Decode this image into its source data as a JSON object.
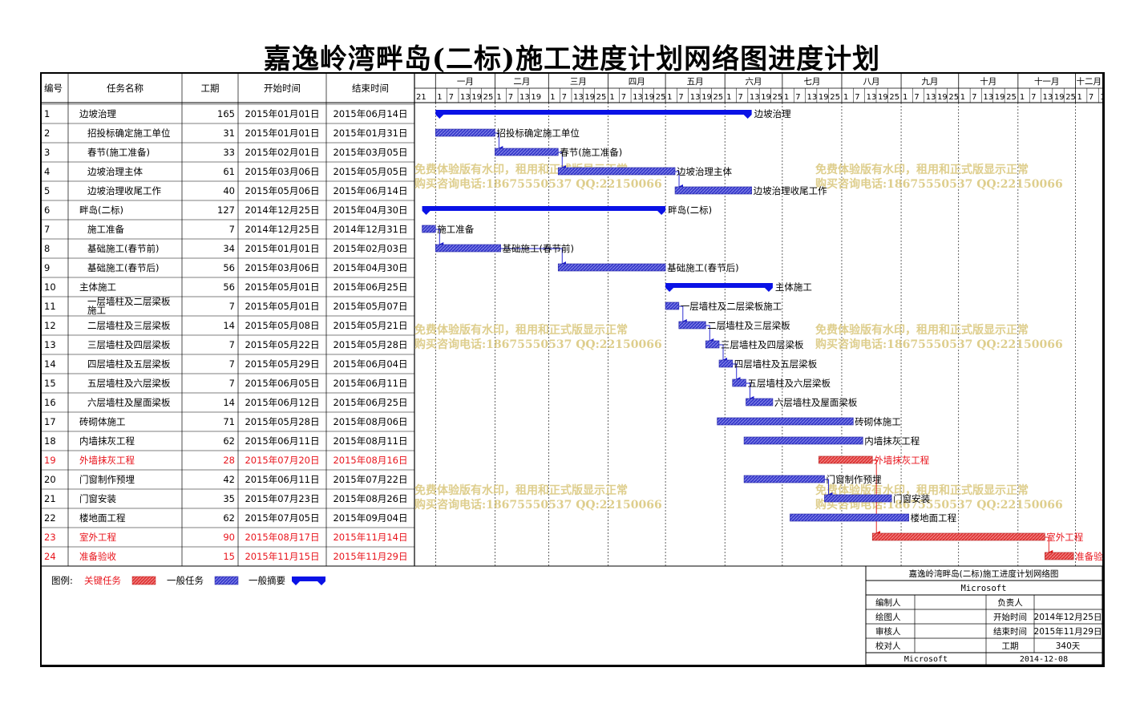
{
  "title": "嘉逸岭湾畔岛(二标)施工进度计划网络图进度计划",
  "headers": {
    "id": "编号",
    "name": "任务名称",
    "duration": "工期",
    "start": "开始时间",
    "end": "结束时间"
  },
  "timeline": {
    "first_day_label": "21",
    "months": [
      {
        "label": "一月",
        "year": 2015,
        "month": 1,
        "days": [
          1,
          7,
          13,
          19,
          25
        ]
      },
      {
        "label": "二月",
        "year": 2015,
        "month": 2,
        "days": [
          1,
          7,
          13,
          19
        ]
      },
      {
        "label": "三月",
        "year": 2015,
        "month": 3,
        "days": [
          1,
          7,
          13,
          19,
          25
        ]
      },
      {
        "label": "四月",
        "year": 2015,
        "month": 4,
        "days": [
          1,
          7,
          13,
          19,
          25
        ]
      },
      {
        "label": "五月",
        "year": 2015,
        "month": 5,
        "days": [
          1,
          7,
          13,
          19,
          25
        ]
      },
      {
        "label": "六月",
        "year": 2015,
        "month": 6,
        "days": [
          1,
          7,
          13,
          19,
          25
        ]
      },
      {
        "label": "七月",
        "year": 2015,
        "month": 7,
        "days": [
          1,
          7,
          13,
          19,
          25
        ]
      },
      {
        "label": "八月",
        "year": 2015,
        "month": 8,
        "days": [
          1,
          7,
          13,
          19,
          25
        ]
      },
      {
        "label": "九月",
        "year": 2015,
        "month": 9,
        "days": [
          1,
          7,
          13,
          19,
          25
        ]
      },
      {
        "label": "十月",
        "year": 2015,
        "month": 10,
        "days": [
          1,
          7,
          13,
          19,
          25
        ]
      },
      {
        "label": "十一月",
        "year": 2015,
        "month": 11,
        "days": [
          1,
          7,
          13,
          19,
          25
        ]
      },
      {
        "label": "十二月",
        "year": 2015,
        "month": 12,
        "days": [
          1,
          7,
          13
        ]
      }
    ]
  },
  "chart_data": {
    "type": "gantt",
    "title": "嘉逸岭湾畔岛(二标)施工进度计划网络图进度计划",
    "x_range": [
      "2014-12-21",
      "2015-12-15"
    ],
    "tasks": [
      {
        "id": "1",
        "name": "边坡治理",
        "indent": 0,
        "duration": 165,
        "start": "2015年01月01日",
        "end": "2015年06月14日",
        "s": "2015-01-01",
        "e": "2015-06-14",
        "type": "summary",
        "critical": false
      },
      {
        "id": "2",
        "name": "招投标确定施工单位",
        "indent": 1,
        "duration": 31,
        "start": "2015年01月01日",
        "end": "2015年01月31日",
        "s": "2015-01-01",
        "e": "2015-01-31",
        "type": "task",
        "critical": false
      },
      {
        "id": "3",
        "name": "春节(施工准备)",
        "indent": 1,
        "duration": 33,
        "start": "2015年02月01日",
        "end": "2015年03月05日",
        "s": "2015-02-01",
        "e": "2015-03-05",
        "type": "task",
        "critical": false
      },
      {
        "id": "4",
        "name": "边坡治理主体",
        "indent": 1,
        "duration": 61,
        "start": "2015年03月06日",
        "end": "2015年05月05日",
        "s": "2015-03-06",
        "e": "2015-05-05",
        "type": "task",
        "critical": false
      },
      {
        "id": "5",
        "name": "边坡治理收尾工作",
        "indent": 1,
        "duration": 40,
        "start": "2015年05月06日",
        "end": "2015年06月14日",
        "s": "2015-05-06",
        "e": "2015-06-14",
        "type": "task",
        "critical": false
      },
      {
        "id": "6",
        "name": "畔岛(二标)",
        "indent": 0,
        "duration": 127,
        "start": "2014年12月25日",
        "end": "2015年04月30日",
        "s": "2014-12-25",
        "e": "2015-04-30",
        "type": "summary",
        "critical": false
      },
      {
        "id": "7",
        "name": "施工准备",
        "indent": 1,
        "duration": 7,
        "start": "2014年12月25日",
        "end": "2014年12月31日",
        "s": "2014-12-25",
        "e": "2014-12-31",
        "type": "task",
        "critical": false
      },
      {
        "id": "8",
        "name": "基础施工(春节前)",
        "indent": 1,
        "duration": 34,
        "start": "2015年01月01日",
        "end": "2015年02月03日",
        "s": "2015-01-01",
        "e": "2015-02-03",
        "type": "task",
        "critical": false
      },
      {
        "id": "9",
        "name": "基础施工(春节后)",
        "indent": 1,
        "duration": 56,
        "start": "2015年03月06日",
        "end": "2015年04月30日",
        "s": "2015-03-06",
        "e": "2015-04-30",
        "type": "task",
        "critical": false
      },
      {
        "id": "10",
        "name": "主体施工",
        "indent": 0,
        "duration": 56,
        "start": "2015年05月01日",
        "end": "2015年06月25日",
        "s": "2015-05-01",
        "e": "2015-06-25",
        "type": "summary",
        "critical": false
      },
      {
        "id": "11",
        "name": "一层墙柱及二层梁板施工",
        "name_lines": [
          "一层墙柱及二层梁板",
          "施工"
        ],
        "indent": 1,
        "duration": 7,
        "start": "2015年05月01日",
        "end": "2015年05月07日",
        "s": "2015-05-01",
        "e": "2015-05-07",
        "type": "task",
        "critical": false
      },
      {
        "id": "12",
        "name": "二层墙柱及三层梁板",
        "indent": 1,
        "duration": 14,
        "start": "2015年05月08日",
        "end": "2015年05月21日",
        "s": "2015-05-08",
        "e": "2015-05-21",
        "type": "task",
        "critical": false
      },
      {
        "id": "13",
        "name": "三层墙柱及四层梁板",
        "indent": 1,
        "duration": 7,
        "start": "2015年05月22日",
        "end": "2015年05月28日",
        "s": "2015-05-22",
        "e": "2015-05-28",
        "type": "task",
        "critical": false
      },
      {
        "id": "14",
        "name": "四层墙柱及五层梁板",
        "indent": 1,
        "duration": 7,
        "start": "2015年05月29日",
        "end": "2015年06月04日",
        "s": "2015-05-29",
        "e": "2015-06-04",
        "type": "task",
        "critical": false
      },
      {
        "id": "15",
        "name": "五层墙柱及六层梁板",
        "indent": 1,
        "duration": 7,
        "start": "2015年06月05日",
        "end": "2015年06月11日",
        "s": "2015-06-05",
        "e": "2015-06-11",
        "type": "task",
        "critical": false
      },
      {
        "id": "16",
        "name": "六层墙柱及屋面梁板",
        "indent": 1,
        "duration": 14,
        "start": "2015年06月12日",
        "end": "2015年06月25日",
        "s": "2015-06-12",
        "e": "2015-06-25",
        "type": "task",
        "critical": false
      },
      {
        "id": "17",
        "name": "砖砌体施工",
        "indent": 0,
        "duration": 71,
        "start": "2015年05月28日",
        "end": "2015年08月06日",
        "s": "2015-05-28",
        "e": "2015-08-06",
        "type": "task",
        "critical": false
      },
      {
        "id": "18",
        "name": "内墙抹灰工程",
        "indent": 0,
        "duration": 62,
        "start": "2015年06月11日",
        "end": "2015年08月11日",
        "s": "2015-06-11",
        "e": "2015-08-11",
        "type": "task",
        "critical": false
      },
      {
        "id": "19",
        "name": "外墙抹灰工程",
        "indent": 0,
        "duration": 28,
        "start": "2015年07月20日",
        "end": "2015年08月16日",
        "s": "2015-07-20",
        "e": "2015-08-16",
        "type": "task",
        "critical": true
      },
      {
        "id": "20",
        "name": "门窗制作预埋",
        "indent": 0,
        "duration": 42,
        "start": "2015年06月11日",
        "end": "2015年07月22日",
        "s": "2015-06-11",
        "e": "2015-07-22",
        "type": "task",
        "critical": false
      },
      {
        "id": "21",
        "name": "门窗安装",
        "indent": 0,
        "duration": 35,
        "start": "2015年07月23日",
        "end": "2015年08月26日",
        "s": "2015-07-23",
        "e": "2015-08-26",
        "type": "task",
        "critical": false
      },
      {
        "id": "22",
        "name": "楼地面工程",
        "indent": 0,
        "duration": 62,
        "start": "2015年07月05日",
        "end": "2015年09月04日",
        "s": "2015-07-05",
        "e": "2015-09-04",
        "type": "task",
        "critical": false
      },
      {
        "id": "23",
        "name": "室外工程",
        "indent": 0,
        "duration": 90,
        "start": "2015年08月17日",
        "end": "2015年11月14日",
        "s": "2015-08-17",
        "e": "2015-11-14",
        "type": "task",
        "critical": true
      },
      {
        "id": "24",
        "name": "准备验收",
        "indent": 0,
        "duration": 15,
        "start": "2015年11月15日",
        "end": "2015年11月29日",
        "s": "2015-11-15",
        "e": "2015-11-29",
        "type": "task",
        "critical": true
      }
    ],
    "links": [
      [
        "2",
        "3"
      ],
      [
        "3",
        "4"
      ],
      [
        "4",
        "5"
      ],
      [
        "7",
        "8"
      ],
      [
        "8",
        "9"
      ],
      [
        "11",
        "12"
      ],
      [
        "12",
        "13"
      ],
      [
        "13",
        "14"
      ],
      [
        "14",
        "15"
      ],
      [
        "15",
        "16"
      ],
      [
        "20",
        "21"
      ],
      [
        "19",
        "23"
      ],
      [
        "23",
        "24"
      ]
    ],
    "colors": {
      "task": "#3a3dcc",
      "critical": "#e03a3a",
      "summary": "#0a12e6"
    }
  },
  "watermark": {
    "line1": "免费体验版有水印，租用和正式版显示正常",
    "line2": "购买咨询电话:18675550537 QQ:22150066"
  },
  "legend": {
    "prefix": "图例:",
    "critical": "关键任务",
    "normal": "一般任务",
    "summary": "一般摘要"
  },
  "info": {
    "title": "嘉逸岭湾畔岛(二标)施工进度计划网络图",
    "company": "Microsoft",
    "rows": [
      {
        "l1": "编制人",
        "v1": "",
        "l2": "负责人",
        "v2": ""
      },
      {
        "l1": "绘图人",
        "v1": "",
        "l2": "开始时间",
        "v2": "2014年12月25日"
      },
      {
        "l1": "审核人",
        "v1": "",
        "l2": "结束时间",
        "v2": "2015年11月29日"
      },
      {
        "l1": "校对人",
        "v1": "",
        "l2": "工期",
        "v2": "340天"
      }
    ],
    "footer_left": "Microsoft",
    "footer_right": "2014-12-08"
  }
}
